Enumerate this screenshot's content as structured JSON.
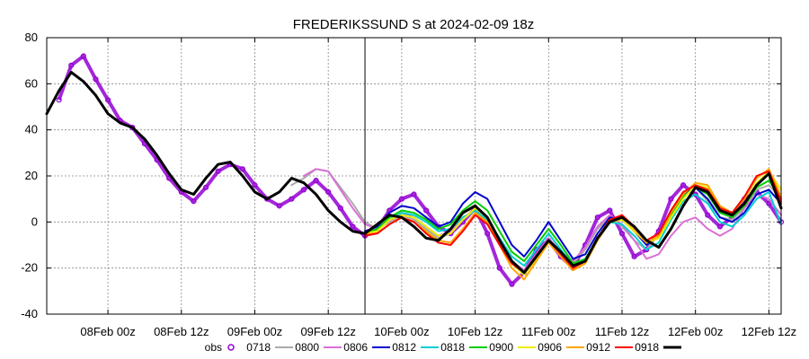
{
  "chart_data": {
    "type": "line",
    "title": "FREDERIKSSUND S at 2024-02-09 18z",
    "xlabel": "",
    "ylabel": "",
    "ylim": [
      -40,
      80
    ],
    "xlim": [
      -10,
      110
    ],
    "yticks": [
      -40,
      -20,
      0,
      20,
      40,
      60,
      80
    ],
    "xticks": [
      {
        "x": 0,
        "label": "08Feb 00z"
      },
      {
        "x": 12,
        "label": "08Feb 12z"
      },
      {
        "x": 24,
        "label": "09Feb 00z"
      },
      {
        "x": 36,
        "label": "09Feb 12z"
      },
      {
        "x": 48,
        "label": "10Feb 00z"
      },
      {
        "x": 60,
        "label": "10Feb 12z"
      },
      {
        "x": 72,
        "label": "11Feb 00z"
      },
      {
        "x": 84,
        "label": "11Feb 12z"
      },
      {
        "x": 96,
        "label": "12Feb 00z"
      },
      {
        "x": 108,
        "label": "12Feb 12z"
      }
    ],
    "analysis_time_x": 42,
    "grid": true,
    "legend_position": "bottom",
    "series": [
      {
        "name": "obs",
        "color": "#9400d3",
        "style": "markers",
        "x": [
          -8,
          -6,
          -4,
          -2,
          0,
          2,
          4,
          6,
          8,
          10,
          12,
          14,
          16,
          18,
          20,
          22,
          24,
          26,
          28,
          30,
          32,
          34,
          36,
          38,
          40,
          42,
          44,
          46,
          48,
          50,
          52,
          54,
          56,
          58,
          60,
          62,
          64,
          66,
          68,
          70,
          72,
          74,
          76,
          78,
          80,
          82,
          84,
          86,
          88,
          90,
          92,
          94,
          96,
          98,
          100,
          102,
          104,
          106,
          108,
          110
        ],
        "values": [
          53,
          68,
          72,
          62,
          53,
          44,
          41,
          34,
          27,
          19,
          13,
          9,
          15,
          22,
          25,
          23,
          16,
          10,
          7,
          10,
          14,
          18,
          13,
          6,
          -2,
          -6,
          -3,
          5,
          10,
          12,
          5,
          -2,
          -5,
          0,
          6,
          -5,
          -20,
          -27,
          -22,
          -12,
          -8,
          -15,
          -20,
          -10,
          2,
          5,
          -5,
          -15,
          -12,
          -4,
          10,
          16,
          12,
          3,
          -2,
          2,
          10,
          13,
          8,
          0
        ]
      },
      {
        "name": "0718",
        "color": "#aaaaaa",
        "style": "line",
        "x": [
          30,
          32,
          34,
          36,
          38,
          40,
          42,
          44,
          46,
          48,
          50,
          52,
          54,
          56,
          58,
          60,
          62,
          64,
          66,
          68,
          70,
          72,
          74,
          76,
          78,
          80,
          82,
          84,
          86,
          88,
          90,
          92,
          94,
          96,
          98,
          100,
          102,
          104,
          106,
          108,
          110
        ],
        "values": [
          16,
          19,
          23,
          22,
          15,
          8,
          0,
          -3,
          0,
          3,
          1,
          -3,
          -7,
          -5,
          1,
          5,
          0,
          -10,
          -18,
          -22,
          -15,
          -8,
          -14,
          -18,
          -12,
          -3,
          2,
          -2,
          -8,
          -12,
          -5,
          5,
          13,
          15,
          9,
          2,
          1,
          6,
          14,
          16,
          10
        ]
      },
      {
        "name": "0800",
        "color": "#da70d6",
        "style": "line",
        "x": [
          32,
          34,
          36,
          38,
          40,
          42,
          44,
          46,
          48,
          50,
          52,
          54,
          56,
          58,
          60,
          62,
          64,
          66,
          68,
          70,
          72,
          74,
          76,
          78,
          80,
          82,
          84,
          86,
          88,
          90,
          92,
          94,
          96,
          98,
          100,
          102,
          104,
          106,
          108,
          110
        ],
        "values": [
          20,
          23,
          22,
          14,
          6,
          -1,
          -3,
          1,
          4,
          2,
          -2,
          -6,
          -4,
          2,
          5,
          0,
          -9,
          -17,
          -21,
          -14,
          -7,
          -13,
          -17,
          -11,
          -2,
          3,
          -1,
          -8,
          -16,
          -14,
          -6,
          0,
          2,
          -3,
          -6,
          -3,
          6,
          12,
          10,
          3
        ]
      },
      {
        "name": "0806",
        "color": "#0000cd",
        "style": "line",
        "x": [
          42,
          44,
          46,
          48,
          50,
          52,
          54,
          56,
          58,
          60,
          62,
          64,
          66,
          68,
          70,
          72,
          74,
          76,
          78,
          80,
          82,
          84,
          86,
          88,
          90,
          92,
          94,
          96,
          98,
          100,
          102,
          104,
          106,
          108,
          110
        ],
        "values": [
          -4,
          -2,
          4,
          7,
          6,
          2,
          -2,
          0,
          8,
          13,
          10,
          0,
          -10,
          -15,
          -8,
          0,
          -8,
          -16,
          -14,
          -5,
          2,
          1,
          -4,
          -10,
          -6,
          4,
          12,
          15,
          10,
          2,
          0,
          4,
          12,
          14,
          8
        ]
      },
      {
        "name": "0812",
        "color": "#00ced1",
        "style": "line",
        "x": [
          42,
          44,
          46,
          48,
          50,
          52,
          54,
          56,
          58,
          60,
          62,
          64,
          66,
          68,
          70,
          72,
          74,
          76,
          78,
          80,
          82,
          84,
          86,
          88,
          90,
          92,
          94,
          96,
          98,
          100,
          102,
          104,
          106,
          108,
          110
        ],
        "values": [
          -5,
          -4,
          1,
          4,
          3,
          0,
          -4,
          -3,
          2,
          5,
          1,
          -7,
          -15,
          -19,
          -12,
          -5,
          -12,
          -19,
          -17,
          -8,
          0,
          -1,
          -6,
          -12,
          -9,
          1,
          9,
          12,
          8,
          0,
          -2,
          3,
          10,
          13,
          -1
        ]
      },
      {
        "name": "0818",
        "color": "#00cd00",
        "style": "line",
        "x": [
          42,
          44,
          46,
          48,
          50,
          52,
          54,
          56,
          58,
          60,
          62,
          64,
          66,
          68,
          70,
          72,
          74,
          76,
          78,
          80,
          82,
          84,
          86,
          88,
          90,
          92,
          94,
          96,
          98,
          100,
          102,
          104,
          106,
          108,
          110
        ],
        "values": [
          -5,
          -3,
          2,
          5,
          4,
          1,
          -3,
          -1,
          5,
          9,
          5,
          -4,
          -13,
          -17,
          -10,
          -3,
          -10,
          -18,
          -16,
          -7,
          1,
          2,
          -3,
          -9,
          -7,
          3,
          11,
          15,
          12,
          4,
          2,
          7,
          15,
          18,
          10
        ]
      },
      {
        "name": "0900",
        "color": "#eeee00",
        "style": "line",
        "x": [
          42,
          44,
          46,
          48,
          50,
          52,
          54,
          56,
          58,
          60,
          62,
          64,
          66,
          68,
          70,
          72,
          74,
          76,
          78,
          80,
          82,
          84,
          86,
          88,
          90,
          92,
          94,
          96,
          98,
          100,
          102,
          104,
          106,
          108,
          110
        ],
        "values": [
          -5,
          -4,
          1,
          3,
          2,
          -2,
          -6,
          -5,
          1,
          6,
          2,
          -8,
          -18,
          -23,
          -16,
          -8,
          -14,
          -20,
          -17,
          -7,
          0,
          1,
          -4,
          -9,
          -7,
          2,
          10,
          16,
          15,
          6,
          3,
          8,
          17,
          22,
          14
        ]
      },
      {
        "name": "0906",
        "color": "#ffa500",
        "style": "line",
        "x": [
          42,
          44,
          46,
          48,
          50,
          52,
          54,
          56,
          58,
          60,
          62,
          64,
          66,
          68,
          70,
          72,
          74,
          76,
          78,
          80,
          82,
          84,
          86,
          88,
          90,
          92,
          94,
          96,
          98,
          100,
          102,
          104,
          106,
          108,
          110
        ],
        "values": [
          -5,
          -5,
          -1,
          2,
          0,
          -4,
          -8,
          -9,
          -3,
          4,
          0,
          -10,
          -20,
          -25,
          -17,
          -9,
          -15,
          -21,
          -18,
          -8,
          0,
          2,
          -3,
          -9,
          -6,
          4,
          12,
          17,
          16,
          7,
          4,
          10,
          19,
          23,
          11
        ]
      },
      {
        "name": "0912",
        "color": "#ff0000",
        "style": "line",
        "x": [
          42,
          44,
          46,
          48,
          50,
          52,
          54,
          56,
          58,
          60,
          62,
          64,
          66,
          68,
          70,
          72,
          74,
          76,
          78,
          80,
          82,
          84,
          86,
          88,
          90,
          92,
          94,
          96,
          98,
          100,
          102,
          104,
          106,
          108,
          110
        ],
        "values": [
          -6,
          -5,
          -1,
          2,
          0,
          -5,
          -9,
          -10,
          -4,
          3,
          -1,
          -10,
          -18,
          -22,
          -15,
          -8,
          -14,
          -20,
          -17,
          -7,
          1,
          3,
          -2,
          -8,
          -5,
          5,
          13,
          16,
          14,
          6,
          4,
          11,
          20,
          22,
          9
        ]
      },
      {
        "name": "0918",
        "color": "#000000",
        "style": "thick",
        "x": [
          -10,
          -8,
          -6,
          -4,
          -2,
          0,
          2,
          4,
          6,
          8,
          10,
          12,
          14,
          16,
          18,
          20,
          22,
          24,
          26,
          28,
          30,
          32,
          34,
          36,
          38,
          40,
          42,
          44,
          46,
          48,
          50,
          52,
          54,
          56,
          58,
          60,
          62,
          64,
          66,
          68,
          70,
          72,
          74,
          76,
          78,
          80,
          82,
          84,
          86,
          88,
          90,
          92,
          94,
          96,
          98,
          100,
          102,
          104,
          106,
          108,
          110
        ],
        "values": [
          47,
          57,
          65,
          61,
          55,
          47,
          43,
          41,
          36,
          29,
          21,
          14,
          12,
          19,
          25,
          26,
          20,
          13,
          10,
          13,
          19,
          17,
          12,
          5,
          0,
          -4,
          -5,
          -1,
          3,
          2,
          -2,
          -7,
          -8,
          -3,
          4,
          7,
          2,
          -8,
          -17,
          -22,
          -15,
          -8,
          -13,
          -19,
          -17,
          -7,
          0,
          2,
          -2,
          -8,
          -11,
          -3,
          7,
          15,
          13,
          5,
          3,
          8,
          16,
          21,
          6
        ]
      }
    ]
  }
}
